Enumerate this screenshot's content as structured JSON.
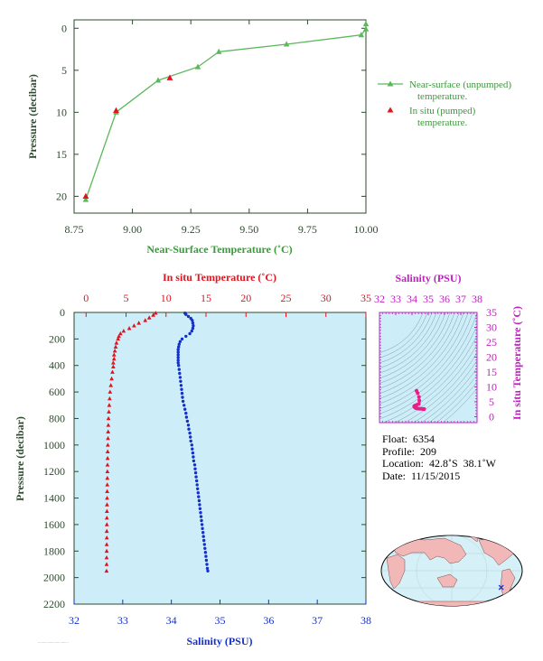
{
  "colors": {
    "green": "#5cb85c",
    "green_text": "#3a9a3a",
    "dark_green": "#2d4a2d",
    "red": "#e0141e",
    "blue": "#1530c8",
    "magenta": "#c020c0",
    "pink_trace": "#e8208a",
    "panel_bg": "#cdeef8",
    "land": "#f2b8b8",
    "ocean": "#d6f0f8"
  },
  "chart_data": [
    {
      "id": "near_surface",
      "type": "line",
      "xlabel": "Near-Surface Temperature (˚C)",
      "ylabel": "Pressure (decibar)",
      "xlim": [
        8.75,
        10.0
      ],
      "ylim": [
        22,
        -1
      ],
      "xticks": [
        8.75,
        9.0,
        9.25,
        9.5,
        9.75,
        10.0
      ],
      "xtick_labels": [
        "8.75",
        "9.00",
        "9.25",
        "9.50",
        "9.75",
        "10.00"
      ],
      "yticks": [
        0,
        5,
        10,
        15,
        20
      ],
      "grid": false,
      "legend_position": "right",
      "series": [
        {
          "name": "Near-surface (unpumped) temperature.",
          "legend_lines": [
            "Near-surface (unpumped)",
            "temperature."
          ],
          "marker": "triangle",
          "line": true,
          "x": [
            10.0,
            10.0,
            9.98,
            9.66,
            9.37,
            9.28,
            9.11,
            8.93,
            8.8
          ],
          "y": [
            -0.5,
            0.1,
            0.8,
            1.9,
            2.8,
            4.6,
            6.2,
            10.0,
            20.4
          ]
        },
        {
          "name": "In situ (pumped) temperature.",
          "legend_lines": [
            "In situ (pumped)",
            "temperature."
          ],
          "marker": "triangle",
          "line": false,
          "x": [
            9.16,
            8.93,
            8.8
          ],
          "y": [
            5.9,
            9.8,
            20.0
          ]
        }
      ]
    },
    {
      "id": "profile",
      "type": "scatter",
      "ylabel": "Pressure (decibar)",
      "top_xlabel": "In situ Temperature (˚C)",
      "bottom_xlabel": "Salinity (PSU)",
      "temp_lim": [
        -1.5,
        35
      ],
      "temp_ticks": [
        0,
        5,
        10,
        15,
        20,
        25,
        30,
        35
      ],
      "sal_lim": [
        32,
        38
      ],
      "sal_ticks": [
        32,
        33,
        34,
        35,
        36,
        37,
        38
      ],
      "ylim": [
        2200,
        0
      ],
      "yticks": [
        0,
        200,
        400,
        600,
        800,
        1000,
        1200,
        1400,
        1600,
        1800,
        2000,
        2200
      ],
      "series": [
        {
          "name": "In situ Temperature (˚C)",
          "marker": "triangle",
          "axis": "temperature",
          "pressure": [
            5,
            20,
            40,
            60,
            80,
            100,
            120,
            140,
            160,
            180,
            200,
            230,
            260,
            290,
            320,
            350,
            380,
            410,
            450,
            500,
            550,
            600,
            650,
            700,
            750,
            800,
            850,
            900,
            950,
            1000,
            1050,
            1100,
            1150,
            1200,
            1250,
            1300,
            1350,
            1400,
            1450,
            1500,
            1550,
            1600,
            1650,
            1700,
            1750,
            1800,
            1850,
            1900,
            1950
          ],
          "values": [
            8.7,
            8.4,
            7.9,
            7.4,
            6.6,
            6.0,
            5.4,
            4.7,
            4.3,
            4.1,
            4.0,
            3.8,
            3.7,
            3.6,
            3.5,
            3.5,
            3.4,
            3.4,
            3.3,
            3.2,
            3.1,
            3.0,
            2.95,
            2.9,
            2.85,
            2.8,
            2.78,
            2.76,
            2.74,
            2.72,
            2.7,
            2.69,
            2.68,
            2.67,
            2.66,
            2.65,
            2.64,
            2.63,
            2.62,
            2.61,
            2.6,
            2.6,
            2.59,
            2.59,
            2.58,
            2.58,
            2.57,
            2.57,
            2.56
          ]
        },
        {
          "name": "Salinity (PSU)",
          "marker": "dot",
          "axis": "salinity",
          "pressure": [
            5,
            15,
            30,
            45,
            60,
            80,
            100,
            120,
            140,
            160,
            180,
            200,
            220,
            240,
            260,
            280,
            300,
            320,
            340,
            360,
            380,
            400,
            430,
            460,
            490,
            520,
            550,
            580,
            610,
            640,
            670,
            700,
            730,
            760,
            790,
            820,
            850,
            880,
            910,
            940,
            970,
            1000,
            1030,
            1060,
            1090,
            1120,
            1150,
            1180,
            1210,
            1240,
            1270,
            1300,
            1330,
            1360,
            1390,
            1420,
            1450,
            1480,
            1510,
            1540,
            1570,
            1600,
            1630,
            1660,
            1690,
            1720,
            1750,
            1780,
            1810,
            1840,
            1870,
            1900,
            1930,
            1950
          ],
          "values": [
            34.28,
            34.3,
            34.35,
            34.4,
            34.43,
            34.44,
            34.45,
            34.44,
            34.42,
            34.38,
            34.3,
            34.22,
            34.18,
            34.16,
            34.15,
            34.14,
            34.14,
            34.14,
            34.14,
            34.14,
            34.14,
            34.15,
            34.16,
            34.17,
            34.18,
            34.19,
            34.2,
            34.21,
            34.22,
            34.23,
            34.24,
            34.26,
            34.28,
            34.3,
            34.31,
            34.33,
            34.35,
            34.36,
            34.38,
            34.39,
            34.4,
            34.42,
            34.43,
            34.44,
            34.45,
            34.46,
            34.48,
            34.49,
            34.5,
            34.51,
            34.52,
            34.53,
            34.54,
            34.55,
            34.56,
            34.57,
            34.58,
            34.59,
            34.6,
            34.61,
            34.62,
            34.63,
            34.64,
            34.65,
            34.66,
            34.67,
            34.68,
            34.69,
            34.7,
            34.71,
            34.72,
            34.73,
            34.74,
            34.75
          ]
        }
      ]
    },
    {
      "id": "ts_diagram",
      "type": "scatter",
      "xlabel": "Salinity (PSU)",
      "ylabel": "In situ Temperature (˚C)",
      "xlim": [
        32,
        38
      ],
      "ylim": [
        -2,
        35
      ],
      "xticks": [
        32,
        33,
        34,
        35,
        36,
        37,
        38
      ],
      "yticks": [
        0,
        5,
        10,
        15,
        20,
        25,
        30,
        35
      ],
      "series": [
        {
          "name": "T-S",
          "salinity": [
            34.28,
            34.35,
            34.43,
            34.45,
            34.42,
            34.3,
            34.18,
            34.14,
            34.14,
            34.16,
            34.2,
            34.26,
            34.35,
            34.45,
            34.55,
            34.65,
            34.75
          ],
          "temperature": [
            8.7,
            7.9,
            6.6,
            5.4,
            4.3,
            4.0,
            3.7,
            3.5,
            3.4,
            3.2,
            3.0,
            2.85,
            2.74,
            2.68,
            2.63,
            2.59,
            2.56
          ]
        }
      ]
    }
  ],
  "info": {
    "float_line": "Float:  6354",
    "profile_line": "Profile:  209",
    "location_line": "Location:  42.8˚S  38.1˚W",
    "date_line": "Date:  11/15/2015"
  },
  "map": {
    "marker_lat": -42.8,
    "marker_lon": -38.1
  }
}
